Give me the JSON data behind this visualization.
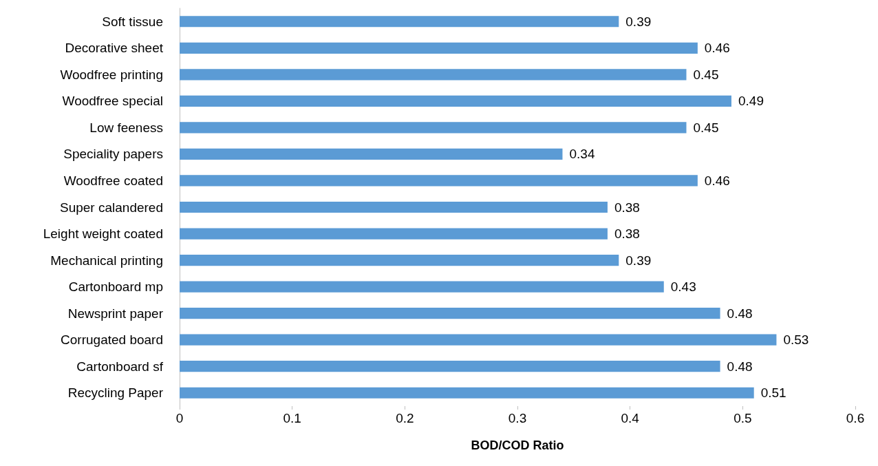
{
  "chart_data": {
    "type": "bar",
    "orientation": "horizontal",
    "xlabel": "BOD/COD Ratio",
    "categories": [
      "Soft tissue",
      "Decorative sheet",
      "Woodfree printing",
      "Woodfree special",
      "Low feeness",
      "Speciality papers",
      "Woodfree coated",
      "Super calandered",
      "Leight weight coated",
      "Mechanical printing",
      "Cartonboard mp",
      "Newsprint paper",
      "Corrugated board",
      "Cartonboard sf",
      "Recycling Paper"
    ],
    "values": [
      0.39,
      0.46,
      0.45,
      0.49,
      0.45,
      0.34,
      0.46,
      0.38,
      0.38,
      0.39,
      0.43,
      0.48,
      0.53,
      0.48,
      0.51
    ],
    "color": "#5b9bd5",
    "xlim": [
      0,
      0.6
    ],
    "xticks": [
      0,
      0.1,
      0.2,
      0.3,
      0.4,
      0.5,
      0.6
    ],
    "data_labels": true,
    "grid": false
  }
}
